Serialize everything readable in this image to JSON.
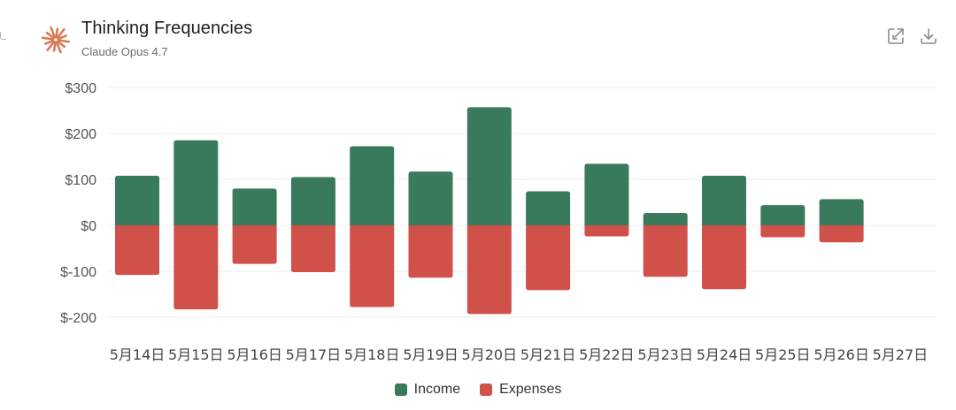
{
  "header": {
    "title": "Thinking Frequencies",
    "subtitle": "Claude Opus 4.7"
  },
  "icons": {
    "logo": "sparkle-logo-icon",
    "expand": "expand-icon",
    "download": "download-icon"
  },
  "colors": {
    "income": "#3a7a5c",
    "expenses": "#d0504a",
    "logo": "#d97a57"
  },
  "chart_data": {
    "type": "bar",
    "stacked": true,
    "categories": [
      "5月14日",
      "5月15日",
      "5月16日",
      "5月17日",
      "5月18日",
      "5月19日",
      "5月20日",
      "5月21日",
      "5月22日",
      "5月23日",
      "5月24日",
      "5月25日",
      "5月26日",
      "5月27日"
    ],
    "series": [
      {
        "name": "Income",
        "values": [
          108,
          185,
          80,
          105,
          172,
          117,
          257,
          74,
          134,
          27,
          108,
          44,
          57,
          null
        ]
      },
      {
        "name": "Expenses",
        "values": [
          -108,
          -183,
          -84,
          -102,
          -178,
          -114,
          -193,
          -141,
          -24,
          -112,
          -139,
          -26,
          -37,
          null
        ]
      }
    ],
    "yticks": [
      300,
      200,
      100,
      0,
      -100,
      -200
    ],
    "ytick_labels": [
      "$300",
      "$200",
      "$100",
      "$0",
      "$-100",
      "$-200"
    ],
    "ylim": [
      -220,
      310
    ],
    "grid": true,
    "legend": "bottom-center"
  }
}
